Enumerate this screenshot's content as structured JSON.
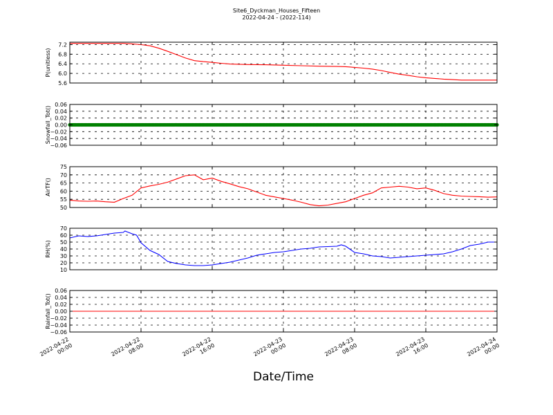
{
  "figure": {
    "title_line1": "Site6_Dyckman_Houses_Fifteen",
    "title_line2": "2022-04-24 - (2022-114)",
    "xlabel": "Date/Time",
    "x_tick_labels": [
      [
        "2022-04-22",
        "00:00"
      ],
      [
        "2022-04-22",
        "08:00"
      ],
      [
        "2022-04-22",
        "16:00"
      ],
      [
        "2022-04-23",
        "00:00"
      ],
      [
        "2022-04-23",
        "08:00"
      ],
      [
        "2022-04-23",
        "16:00"
      ],
      [
        "2022-04-24",
        "00:00"
      ]
    ]
  },
  "chart_data": [
    {
      "type": "line",
      "ylabel": "P(unitless)",
      "ylim": [
        5.6,
        7.3
      ],
      "yticks": [
        5.6,
        6.0,
        6.4,
        6.8,
        7.2
      ],
      "ytick_labels": [
        "5.6",
        "6.0",
        "6.4",
        "6.8",
        "7.2"
      ],
      "color": "#ff0000",
      "grid": true,
      "x_hours": [
        0,
        2,
        4,
        6,
        7,
        8,
        9,
        10,
        11,
        12,
        13,
        14,
        15,
        16,
        17,
        18,
        20,
        22,
        24,
        26,
        28,
        30,
        31,
        32,
        33,
        34,
        35,
        36,
        37,
        38,
        39,
        40,
        41,
        42,
        43,
        44,
        46,
        48
      ],
      "y": [
        7.25,
        7.25,
        7.25,
        7.25,
        7.23,
        7.2,
        7.15,
        7.05,
        6.92,
        6.78,
        6.64,
        6.53,
        6.49,
        6.46,
        6.42,
        6.39,
        6.37,
        6.36,
        6.34,
        6.32,
        6.3,
        6.29,
        6.28,
        6.25,
        6.22,
        6.18,
        6.12,
        6.04,
        5.97,
        5.92,
        5.86,
        5.82,
        5.79,
        5.76,
        5.74,
        5.72,
        5.72,
        5.72
      ]
    },
    {
      "type": "scatter",
      "ylabel": "Snowfall_Tot()",
      "ylim": [
        -0.06,
        0.06
      ],
      "yticks": [
        -0.06,
        -0.04,
        -0.02,
        0.0,
        0.02,
        0.04,
        0.06
      ],
      "ytick_labels": [
        "−0.06",
        "−0.04",
        "−0.02",
        "0.00",
        "0.02",
        "0.04",
        "0.06"
      ],
      "color": "#008000",
      "grid": true,
      "x_range_hours": [
        0,
        48
      ],
      "constant_value": 0.0
    },
    {
      "type": "line",
      "ylabel": "AirTF()",
      "ylim": [
        50,
        75
      ],
      "yticks": [
        50,
        55,
        60,
        65,
        70,
        75
      ],
      "ytick_labels": [
        "50",
        "55",
        "60",
        "65",
        "70",
        "75"
      ],
      "color": "#ff0000",
      "grid": true,
      "x_hours": [
        0,
        1,
        2,
        3,
        4,
        5,
        6,
        7,
        8,
        9,
        10,
        11,
        12,
        13,
        14,
        15,
        16,
        17,
        18,
        19,
        20,
        21,
        22,
        23,
        24,
        25,
        26,
        27,
        28,
        29,
        30,
        31,
        32,
        33,
        34,
        35,
        36,
        37,
        38,
        39,
        40,
        41,
        42,
        43,
        44,
        45,
        46,
        47,
        48
      ],
      "y": [
        54.5,
        54.0,
        53.8,
        54.0,
        53.5,
        53.2,
        55.5,
        57.5,
        62.0,
        63.2,
        64.2,
        65.5,
        67.5,
        69.5,
        70.0,
        67.0,
        68.0,
        66.0,
        64.5,
        62.8,
        61.5,
        59.5,
        57.5,
        56.5,
        55.5,
        54.5,
        53.2,
        51.8,
        51.0,
        51.5,
        52.5,
        53.5,
        55.5,
        57.5,
        59.0,
        62.0,
        62.5,
        63.0,
        62.5,
        61.5,
        62.0,
        60.5,
        58.5,
        57.5,
        57.0,
        56.8,
        56.6,
        56.3,
        56.5
      ]
    },
    {
      "type": "line",
      "ylabel": "RH(%)",
      "ylim": [
        10,
        70
      ],
      "yticks": [
        10,
        20,
        30,
        40,
        50,
        60,
        70
      ],
      "ytick_labels": [
        "10",
        "20",
        "30",
        "40",
        "50",
        "60",
        "70"
      ],
      "color": "#0000ff",
      "grid": true,
      "x_hours": [
        0,
        1,
        2,
        3,
        4,
        5,
        6,
        6.2,
        7,
        7.5,
        8,
        9,
        10,
        11,
        12,
        13,
        14,
        15,
        16,
        17,
        18,
        19,
        20,
        21,
        22,
        23,
        24,
        25,
        26,
        27,
        28,
        29,
        30,
        30.5,
        31,
        32,
        33,
        34,
        35,
        36,
        37,
        38,
        39,
        40,
        41,
        42,
        43,
        44,
        45,
        46,
        47,
        48
      ],
      "y": [
        56,
        59,
        58,
        59,
        61,
        63,
        64,
        66,
        62,
        60,
        49,
        38,
        32,
        22,
        19,
        17,
        16,
        16,
        17,
        19,
        21,
        24,
        27,
        31,
        33,
        35,
        36,
        38,
        40,
        41,
        43,
        43.5,
        44,
        46,
        44,
        35,
        33,
        30,
        29,
        27,
        28,
        29,
        30,
        31,
        32,
        33,
        36,
        40,
        45,
        47,
        50,
        50
      ]
    },
    {
      "type": "line",
      "ylabel": "Rainfall_Tot()",
      "ylim": [
        -0.06,
        0.06
      ],
      "yticks": [
        -0.06,
        -0.04,
        -0.02,
        0.0,
        0.02,
        0.04,
        0.06
      ],
      "ytick_labels": [
        "−0.06",
        "−0.04",
        "−0.02",
        "0.00",
        "0.02",
        "0.04",
        "0.06"
      ],
      "color": "#ff0000",
      "grid": true,
      "x_hours": [
        0,
        48
      ],
      "y": [
        0.0,
        0.0
      ]
    }
  ]
}
